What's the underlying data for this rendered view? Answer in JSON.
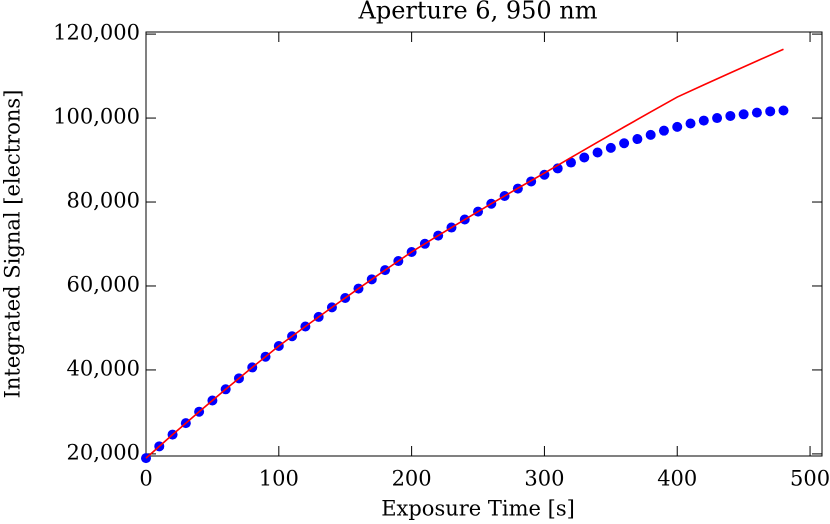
{
  "chart_data": {
    "type": "scatter",
    "title": "Aperture 6, 950 nm",
    "xlabel": "Exposure Time [s]",
    "ylabel": "Integrated Signal [electrons]",
    "xlim": [
      0,
      509
    ],
    "ylim": [
      19500,
      120500
    ],
    "xticks": [
      0,
      100,
      200,
      300,
      400,
      500
    ],
    "yticks": [
      {
        "value": 20000,
        "label": "20,000"
      },
      {
        "value": 40000,
        "label": "40,000"
      },
      {
        "value": 60000,
        "label": "60,000"
      },
      {
        "value": 80000,
        "label": "80,000"
      },
      {
        "value": 100000,
        "label": "100,000"
      },
      {
        "value": 120000,
        "label": "120,000"
      }
    ],
    "series": [
      {
        "type": "scatter",
        "color": "#0000ff",
        "x": [
          0,
          10,
          20,
          30,
          40,
          50,
          60,
          70,
          80,
          90,
          100,
          110,
          120,
          130,
          140,
          150,
          160,
          170,
          180,
          190,
          200,
          210,
          220,
          230,
          240,
          250,
          260,
          270,
          280,
          290,
          300,
          310,
          320,
          330,
          340,
          350,
          360,
          370,
          380,
          390,
          400,
          410,
          420,
          430,
          440,
          450,
          460,
          470,
          480
        ],
        "values": [
          19000,
          21800,
          24600,
          27330,
          30050,
          32720,
          35390,
          38000,
          40600,
          43150,
          45700,
          48030,
          50350,
          52630,
          54900,
          57140,
          59380,
          61580,
          63780,
          65940,
          68100,
          70050,
          72000,
          73920,
          75830,
          77710,
          79590,
          81430,
          83200,
          84900,
          86500,
          88000,
          89400,
          90600,
          91800,
          92900,
          94000,
          95000,
          96000,
          97000,
          97900,
          98700,
          99400,
          100000,
          100500,
          100900,
          101300,
          101600,
          101800
        ]
      },
      {
        "type": "line",
        "color": "#ff0000",
        "x": [
          0,
          20,
          40,
          60,
          80,
          100,
          120,
          140,
          160,
          180,
          200,
          220,
          240,
          260,
          280,
          300,
          320,
          340,
          360,
          380,
          400,
          420,
          440,
          460,
          480
        ],
        "values": [
          19000,
          24600,
          30050,
          35390,
          40600,
          45700,
          50350,
          54900,
          59380,
          63780,
          68100,
          72000,
          75830,
          79590,
          83280,
          86900,
          90600,
          94250,
          97870,
          101450,
          105000,
          107900,
          110760,
          113590,
          116400
        ]
      }
    ]
  }
}
